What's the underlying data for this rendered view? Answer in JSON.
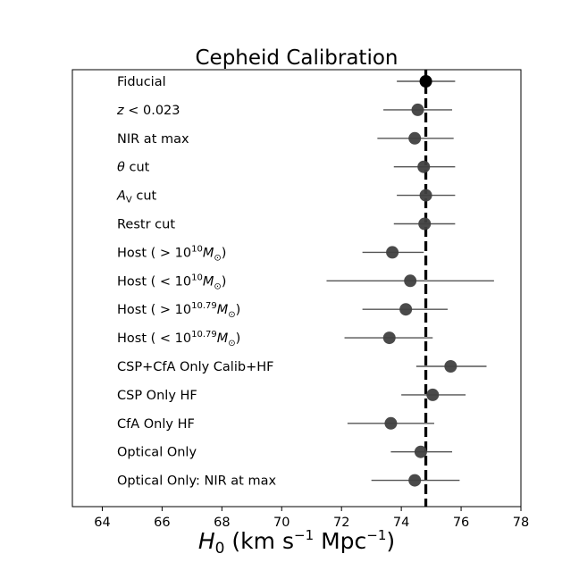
{
  "chart_data": {
    "type": "scatter",
    "title": "Cepheid Calibration",
    "xlabel_parts": [
      "H",
      "0",
      " (km s",
      "−1",
      " Mpc",
      "−1",
      ")"
    ],
    "xlim": [
      63,
      78
    ],
    "xticks": [
      64,
      66,
      68,
      70,
      72,
      74,
      76,
      78
    ],
    "reference_x": 74.82,
    "grid": false,
    "points": [
      {
        "label": [
          [
            "Fiducial",
            ""
          ]
        ],
        "value": 74.82,
        "err_low": 73.85,
        "err_high": 75.8,
        "color": "#000000"
      },
      {
        "label": [
          [
            "z",
            "i"
          ],
          [
            " < 0.023",
            ""
          ]
        ],
        "value": 74.55,
        "err_low": 73.4,
        "err_high": 75.7,
        "color": "#404040"
      },
      {
        "label": [
          [
            "NIR at max",
            ""
          ]
        ],
        "value": 74.45,
        "err_low": 73.2,
        "err_high": 75.75,
        "color": "#404040"
      },
      {
        "label": [
          [
            "θ",
            "i"
          ],
          [
            " cut",
            ""
          ]
        ],
        "value": 74.75,
        "err_low": 73.75,
        "err_high": 75.8,
        "color": "#404040"
      },
      {
        "label": [
          [
            "A",
            "i"
          ],
          [
            "V",
            "sub-i"
          ],
          [
            " cut",
            ""
          ]
        ],
        "value": 74.82,
        "err_low": 73.85,
        "err_high": 75.8,
        "color": "#404040"
      },
      {
        "label": [
          [
            "Restr cut",
            ""
          ]
        ],
        "value": 74.78,
        "err_low": 73.75,
        "err_high": 75.8,
        "color": "#404040"
      },
      {
        "label": [
          [
            "Host ( > 10",
            ""
          ],
          [
            "10",
            "sup"
          ],
          [
            "M",
            "i"
          ],
          [
            "⊙",
            "sub"
          ],
          [
            ")",
            ""
          ]
        ],
        "value": 73.7,
        "err_low": 72.7,
        "err_high": 74.75,
        "color": "#404040"
      },
      {
        "label": [
          [
            "Host ( < 10",
            ""
          ],
          [
            "10",
            "sup"
          ],
          [
            "M",
            "i"
          ],
          [
            "⊙",
            "sub"
          ],
          [
            ")",
            ""
          ]
        ],
        "value": 74.3,
        "err_low": 71.5,
        "err_high": 77.1,
        "color": "#404040"
      },
      {
        "label": [
          [
            "Host ( > 10",
            ""
          ],
          [
            "10.79",
            "sup"
          ],
          [
            "M",
            "i"
          ],
          [
            "⊙",
            "sub"
          ],
          [
            ")",
            ""
          ]
        ],
        "value": 74.15,
        "err_low": 72.7,
        "err_high": 75.55,
        "color": "#404040"
      },
      {
        "label": [
          [
            "Host ( < 10",
            ""
          ],
          [
            "10.79",
            "sup"
          ],
          [
            "M",
            "i"
          ],
          [
            "⊙",
            "sub"
          ],
          [
            ")",
            ""
          ]
        ],
        "value": 73.6,
        "err_low": 72.1,
        "err_high": 75.05,
        "color": "#404040"
      },
      {
        "label": [
          [
            "CSP+CfA Only Calib+HF",
            ""
          ]
        ],
        "value": 75.65,
        "err_low": 74.5,
        "err_high": 76.85,
        "color": "#404040"
      },
      {
        "label": [
          [
            "CSP Only HF",
            ""
          ]
        ],
        "value": 75.05,
        "err_low": 74.0,
        "err_high": 76.15,
        "color": "#404040"
      },
      {
        "label": [
          [
            "CfA Only HF",
            ""
          ]
        ],
        "value": 73.65,
        "err_low": 72.2,
        "err_high": 75.1,
        "color": "#404040"
      },
      {
        "label": [
          [
            "Optical Only",
            ""
          ]
        ],
        "value": 74.65,
        "err_low": 73.65,
        "err_high": 75.7,
        "color": "#404040"
      },
      {
        "label": [
          [
            "Optical Only: NIR at max",
            ""
          ]
        ],
        "value": 74.45,
        "err_low": 73.0,
        "err_high": 75.95,
        "color": "#404040"
      }
    ]
  }
}
